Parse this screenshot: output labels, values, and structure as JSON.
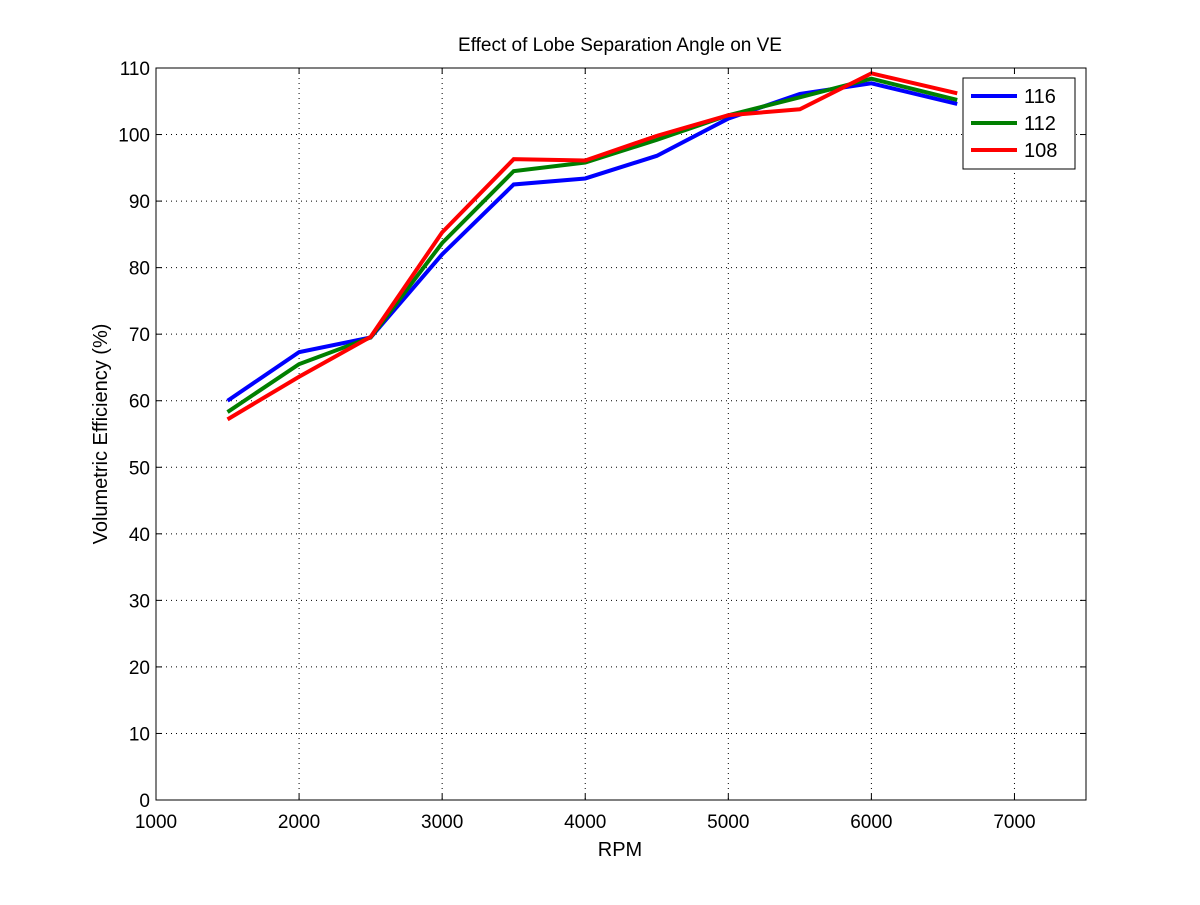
{
  "chart_data": {
    "type": "line",
    "title": "Effect of Lobe Separation Angle on VE",
    "xlabel": "RPM",
    "ylabel": "Volumetric Efficiency (%)",
    "xlim": [
      1000,
      7500
    ],
    "ylim": [
      0,
      110
    ],
    "xticks": [
      1000,
      2000,
      3000,
      4000,
      5000,
      6000,
      7000
    ],
    "yticks": [
      0,
      10,
      20,
      30,
      40,
      50,
      60,
      70,
      80,
      90,
      100,
      110
    ],
    "grid": true,
    "legend_position": "top-right",
    "x": [
      1500,
      2000,
      2500,
      3000,
      3500,
      4000,
      4500,
      5000,
      5500,
      6000,
      6600
    ],
    "series": [
      {
        "name": "116",
        "color": "#0000ff",
        "values": [
          60.0,
          67.3,
          69.5,
          82.0,
          92.5,
          93.4,
          96.8,
          102.4,
          106.1,
          107.7,
          104.6
        ]
      },
      {
        "name": "112",
        "color": "#007f00",
        "values": [
          58.3,
          65.5,
          69.5,
          83.7,
          94.5,
          95.8,
          99.2,
          102.9,
          105.6,
          108.4,
          105.2
        ]
      },
      {
        "name": "108",
        "color": "#ff0000",
        "values": [
          57.2,
          63.6,
          69.6,
          85.3,
          96.3,
          96.1,
          99.8,
          102.9,
          103.8,
          109.2,
          106.2
        ]
      }
    ]
  }
}
